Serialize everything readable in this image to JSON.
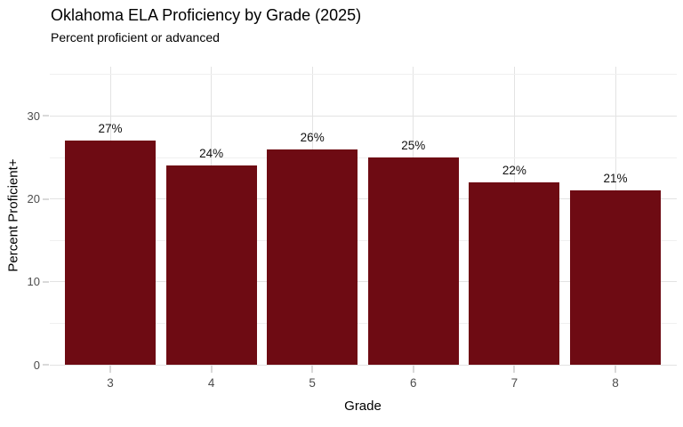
{
  "chart_data": {
    "type": "bar",
    "title": "Oklahoma ELA Proficiency by Grade (2025)",
    "subtitle": "Percent proficient or advanced",
    "xlabel": "Grade",
    "ylabel": "Percent Proficient+",
    "categories": [
      "3",
      "4",
      "5",
      "6",
      "7",
      "8"
    ],
    "values": [
      27,
      24,
      26,
      25,
      22,
      21
    ],
    "value_labels": [
      "27%",
      "24%",
      "26%",
      "25%",
      "22%",
      "21%"
    ],
    "ylim": [
      0,
      36
    ],
    "yticks": [
      0,
      10,
      20,
      30
    ],
    "minor_yticks": [
      5,
      15,
      25,
      35
    ],
    "grid": "on",
    "legend": "none",
    "colors": {
      "bar": "#6e0b13",
      "grid_major": "#e3e3e3",
      "grid_minor": "#f0f0f0",
      "tick": "#d9d9d9",
      "tick_label": "#4d4d4d",
      "text": "#000000",
      "background": "#ffffff"
    }
  }
}
